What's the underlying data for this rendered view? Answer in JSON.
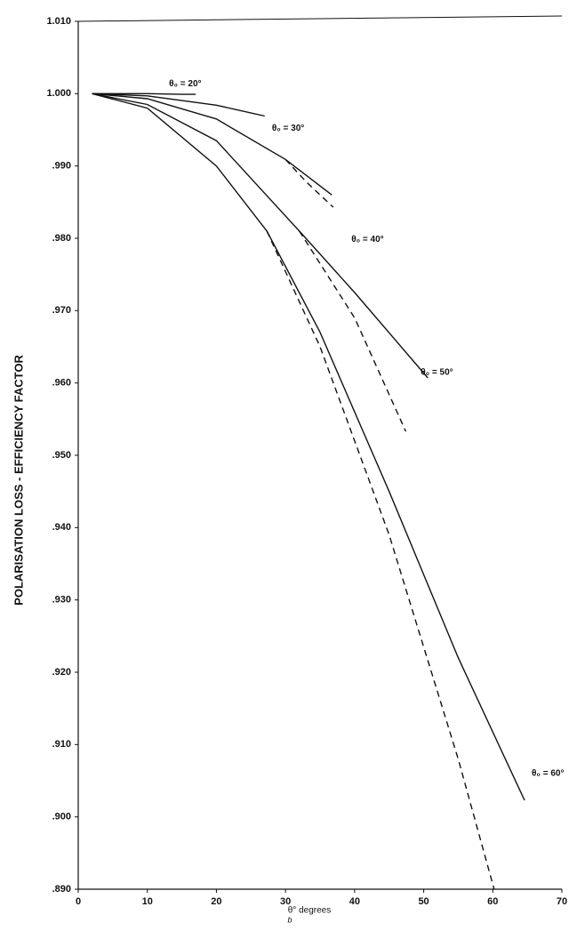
{
  "chart_data": {
    "type": "line",
    "y_label": "POLARISATION LOSS - EFFICIENCY FACTOR",
    "x_label": "θ° degrees",
    "x_label_sub": "b",
    "xlim": [
      0,
      70
    ],
    "xticks": [
      0,
      10,
      20,
      30,
      40,
      50,
      60,
      70
    ],
    "ylim": [
      0.89,
      1.01
    ],
    "yticks": [
      {
        "value": 1.01,
        "label": "1.010"
      },
      {
        "value": 1.0,
        "label": "1.000"
      },
      {
        "value": 0.99,
        "label": ".990"
      },
      {
        "value": 0.98,
        "label": ".980"
      },
      {
        "value": 0.97,
        "label": ".970"
      },
      {
        "value": 0.96,
        "label": ".960"
      },
      {
        "value": 0.95,
        "label": ".950"
      },
      {
        "value": 0.94,
        "label": ".940"
      },
      {
        "value": 0.93,
        "label": ".930"
      },
      {
        "value": 0.92,
        "label": ".920"
      },
      {
        "value": 0.91,
        "label": ".910"
      },
      {
        "value": 0.9,
        "label": ".900"
      },
      {
        "value": 0.89,
        "label": ".890"
      }
    ],
    "color": "#111111",
    "series": [
      {
        "name": "θ₀ = 20°",
        "x": [
          2,
          5,
          10,
          15,
          17
        ],
        "values": [
          1.0,
          1.0,
          1.0,
          0.9999,
          0.9999
        ]
      },
      {
        "name": "θ₀ = 30°",
        "x": [
          2,
          10,
          20,
          27
        ],
        "values": [
          1.0,
          0.9997,
          0.9984,
          0.9969
        ]
      },
      {
        "name": "θ₀ = 40°",
        "x": [
          2,
          10,
          20,
          30,
          36.7
        ],
        "values": [
          1.0,
          0.9993,
          0.9965,
          0.9909,
          0.986
        ],
        "dashed_x": [
          30,
          33,
          36.9
        ],
        "dashed_values": [
          0.9909,
          0.9878,
          0.9843
        ]
      },
      {
        "name": "θ₀ = 50°",
        "x": [
          2,
          10,
          20,
          32,
          40,
          50.6
        ],
        "values": [
          1.0,
          0.9985,
          0.9935,
          0.981,
          0.9725,
          0.9607
        ],
        "dashed_x": [
          32,
          40,
          47.4
        ],
        "dashed_values": [
          0.981,
          0.969,
          0.9533
        ]
      },
      {
        "name": "θ₀ = 60°",
        "x": [
          2,
          10,
          20,
          27.3,
          35,
          45,
          55,
          64.6
        ],
        "values": [
          1.0,
          0.998,
          0.99,
          0.981,
          0.967,
          0.945,
          0.922,
          0.9023
        ],
        "dashed_x": [
          27.3,
          35,
          45,
          55,
          60.2
        ],
        "dashed_values": [
          0.981,
          0.965,
          0.939,
          0.908,
          0.89
        ]
      }
    ]
  }
}
